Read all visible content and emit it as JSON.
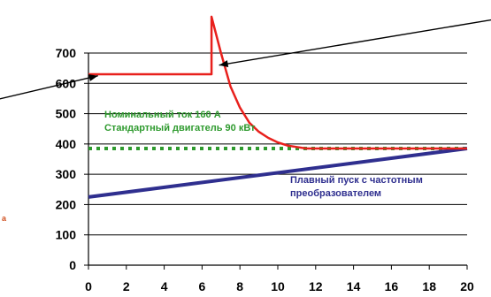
{
  "chart_data": {
    "type": "line",
    "xlim": [
      0,
      20
    ],
    "ylim": [
      0,
      700
    ],
    "x_ticks": [
      "0",
      "2",
      "4",
      "6",
      "8",
      "10",
      "12",
      "14",
      "16",
      "18",
      "20"
    ],
    "y_ticks": [
      "0",
      "100",
      "200",
      "300",
      "400",
      "500",
      "600",
      "700"
    ],
    "grid": "horizontal",
    "series": [
      {
        "name": "",
        "color": "#e8201c",
        "points": [
          [
            0,
            630
          ],
          [
            6.5,
            630
          ],
          [
            6.5,
            820
          ],
          [
            7.0,
            700
          ],
          [
            7.5,
            590
          ],
          [
            8.0,
            520
          ],
          [
            8.5,
            470
          ],
          [
            9.0,
            440
          ],
          [
            9.5,
            420
          ],
          [
            10.0,
            405
          ],
          [
            10.5,
            395
          ],
          [
            11.0,
            390
          ],
          [
            11.5,
            385
          ],
          [
            12.0,
            385
          ],
          [
            13.0,
            385
          ],
          [
            20.0,
            385
          ]
        ]
      },
      {
        "name": "Номинальный ток 160 А",
        "color": "#2e9a2e",
        "style": "dotted",
        "points": [
          [
            0,
            385
          ],
          [
            20,
            385
          ]
        ]
      },
      {
        "name": "Плавный пуск с частотным преобразователем",
        "color": "#2f2f8f",
        "points": [
          [
            0,
            225
          ],
          [
            20,
            385
          ]
        ]
      }
    ],
    "annotations": {
      "green": [
        "Номинальный ток 160 А",
        "Стандартный двигатель 90 кВт"
      ],
      "blue": [
        "Плавный пуск с частотным",
        "преобразователем"
      ]
    },
    "arrows": [
      {
        "from": [
          -8,
          500
        ],
        "to": [
          0.5,
          625
        ]
      },
      {
        "from": [
          30,
          900
        ],
        "to": [
          6.9,
          660
        ]
      }
    ]
  },
  "stray_mark": "a"
}
